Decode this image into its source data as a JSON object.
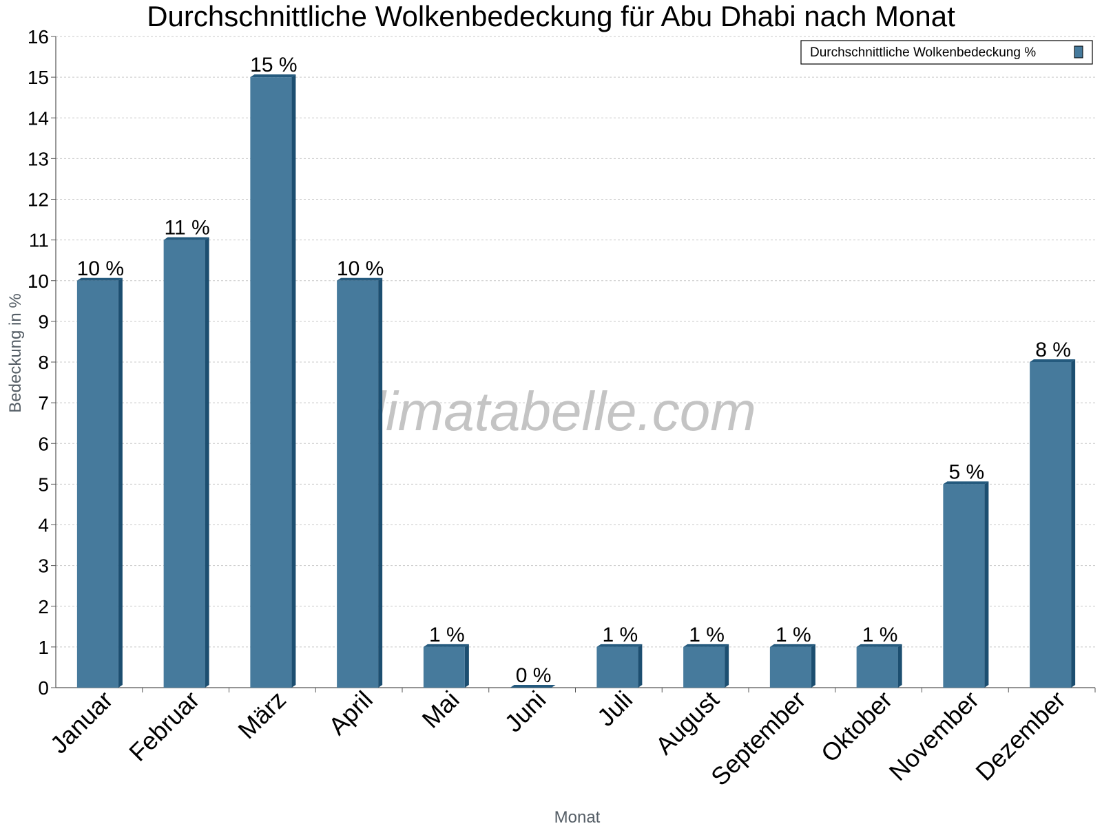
{
  "chart_data": {
    "type": "bar",
    "title": "Durchschnittliche Wolkenbedeckung für Abu Dhabi nach Monat",
    "xlabel": "Monat",
    "ylabel": "Bedeckung in %",
    "ylim": [
      0,
      16
    ],
    "yticks": [
      "0",
      "1",
      "2",
      "3",
      "4",
      "5",
      "6",
      "7",
      "8",
      "9",
      "10",
      "11",
      "12",
      "13",
      "14",
      "15",
      "16"
    ],
    "grid": true,
    "legend_position": "top-right",
    "categories": [
      "Januar",
      "Februar",
      "März",
      "April",
      "Mai",
      "Juni",
      "Juli",
      "August",
      "September",
      "Oktober",
      "November",
      "Dezember"
    ],
    "series": [
      {
        "name": "Durchschnittliche Wolkenbedeckung %",
        "values": [
          10,
          11,
          15,
          10,
          1,
          0,
          1,
          1,
          1,
          1,
          5,
          8
        ],
        "labels": [
          "10 %",
          "11 %",
          "15 %",
          "10 %",
          "1 %",
          "0 %",
          "1 %",
          "1 %",
          "1 %",
          "1 %",
          "5 %",
          "8 %"
        ]
      }
    ],
    "watermark": "klimatabelle.com"
  },
  "colors": {
    "bar_face": "#467a9c",
    "bar_side": "#1c4e70",
    "bar_top": "#245a7e",
    "grid": "#c8c8c8",
    "axis": "#555555"
  }
}
